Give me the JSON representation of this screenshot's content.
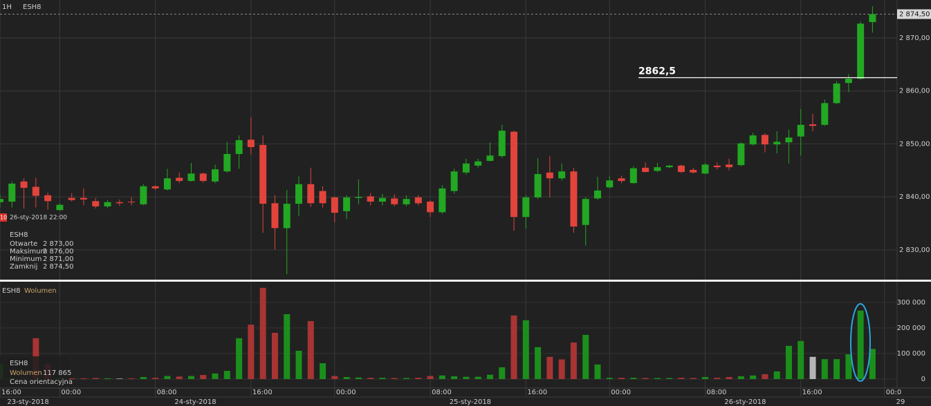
{
  "header": {
    "interval": "1H",
    "symbol": "ESH8"
  },
  "chart_data": [
    {
      "type": "candlestick",
      "categories": [
        "16:00",
        null,
        null,
        null,
        null,
        "00:00",
        null,
        null,
        null,
        null,
        null,
        null,
        null,
        "08:00",
        null,
        null,
        null,
        null,
        null,
        null,
        null,
        "16:00",
        null,
        null,
        null,
        null,
        null,
        null,
        "00:00",
        null,
        null,
        null,
        null,
        null,
        null,
        null,
        "08:00",
        null,
        null,
        null,
        null,
        null,
        null,
        null,
        "16:00",
        null,
        null,
        null,
        null,
        null,
        null,
        "00:00",
        null,
        null,
        null,
        null,
        null,
        null,
        null,
        "08:00",
        null,
        null,
        null,
        null,
        null,
        null,
        null,
        "16:00",
        null,
        null,
        null,
        null,
        null,
        null,
        "00:0"
      ],
      "date_labels": [
        null,
        null,
        "23-sty-2018",
        null,
        null,
        null,
        null,
        null,
        null,
        null,
        null,
        null,
        null,
        null,
        null,
        null,
        "24-sty-2018",
        null,
        null,
        null,
        null,
        null,
        null,
        null,
        null,
        null,
        null,
        null,
        null,
        null,
        null,
        null,
        null,
        null,
        null,
        null,
        null,
        null,
        null,
        "25-sty-2018",
        null,
        null,
        null,
        null,
        null,
        null,
        null,
        null,
        null,
        null,
        null,
        null,
        null,
        null,
        null,
        null,
        null,
        null,
        null,
        null,
        null,
        null,
        "26-sty-2018",
        null,
        null,
        null,
        null,
        null,
        null,
        null,
        null,
        null,
        null,
        null,
        null,
        "29"
      ],
      "open": [
        2839.0,
        2839.1,
        2842.9,
        2841.9,
        2840.3,
        2837.5,
        2839.8,
        2839.8,
        2839.2,
        2838.2,
        2839.0,
        2839.1,
        2838.6,
        2842.0,
        2841.4,
        2843.6,
        2843.0,
        2844.4,
        2842.9,
        2844.8,
        2848.1,
        2850.8,
        2849.8,
        2838.8,
        2834.1,
        2838.7,
        2842.4,
        2841.1,
        2839.9,
        2837.3,
        2839.8,
        2840.1,
        2839.1,
        2839.7,
        2838.6,
        2839.9,
        2839.1,
        2837.1,
        2841.1,
        2844.6,
        2845.9,
        2846.8,
        2847.7,
        2852.3,
        2836.2,
        2839.9,
        2844.6,
        2843.5,
        2844.8,
        2834.7,
        2839.7,
        2841.8,
        2843.5,
        2842.6,
        2845.5,
        2844.9,
        2845.6,
        2845.9,
        2845.1,
        2844.4,
        2845.9,
        2846.1,
        2846.0,
        2849.9,
        2851.7,
        2849.9,
        2850.3,
        2851.4,
        2853.7,
        2853.6,
        2857.7,
        2861.5,
        2862.3,
        2873.0,
        null
      ],
      "high": [
        2840.5,
        2842.9,
        2843.5,
        2843.6,
        2840.8,
        2838.8,
        2840.7,
        2841.6,
        2839.8,
        2839.4,
        2839.5,
        2840.0,
        2842.4,
        2842.2,
        2845.3,
        2844.6,
        2846.4,
        2844.6,
        2846.1,
        2850.4,
        2851.6,
        2855.0,
        2851.6,
        2840.3,
        2841.3,
        2843.9,
        2845.5,
        2842.0,
        2840.0,
        2840.3,
        2843.3,
        2840.7,
        2840.6,
        2840.5,
        2840.3,
        2840.3,
        2839.4,
        2842.2,
        2845.3,
        2847.2,
        2847.2,
        2850.3,
        2853.6,
        2852.5,
        2840.3,
        2847.3,
        2847.7,
        2846.3,
        2845.5,
        2839.9,
        2843.8,
        2843.9,
        2844.0,
        2845.8,
        2846.5,
        2846.4,
        2846.0,
        2846.1,
        2845.5,
        2846.4,
        2846.5,
        2847.2,
        2850.3,
        2852.1,
        2852.0,
        2852.4,
        2852.7,
        2856.6,
        2855.7,
        2858.4,
        2861.9,
        2863.2,
        2873.1,
        2876.0,
        null
      ],
      "low": [
        2838.0,
        2838.0,
        2837.8,
        2838.0,
        2837.6,
        2837.4,
        2839.1,
        2838.4,
        2837.8,
        2837.9,
        2838.3,
        2838.4,
        2838.4,
        2841.3,
        2841.2,
        2842.6,
        2842.9,
        2842.7,
        2842.6,
        2844.6,
        2845.3,
        2848.0,
        2833.2,
        2830.0,
        2825.4,
        2836.4,
        2838.1,
        2838.0,
        2835.2,
        2835.8,
        2838.6,
        2838.4,
        2838.4,
        2838.2,
        2838.2,
        2838.4,
        2836.2,
        2836.8,
        2840.6,
        2844.2,
        2845.5,
        2846.7,
        2847.4,
        2833.6,
        2834.0,
        2839.6,
        2839.9,
        2843.1,
        2833.2,
        2830.8,
        2839.5,
        2841.6,
        2842.6,
        2842.5,
        2844.6,
        2844.7,
        2845.4,
        2844.5,
        2844.4,
        2844.3,
        2845.2,
        2845.0,
        2845.8,
        2849.7,
        2848.4,
        2848.2,
        2846.3,
        2847.8,
        2852.4,
        2853.4,
        2857.5,
        2859.8,
        2862.1,
        2871.0,
        null
      ],
      "close": [
        2839.6,
        2842.5,
        2841.7,
        2840.2,
        2839.2,
        2838.5,
        2839.4,
        2839.5,
        2838.2,
        2839.0,
        2838.8,
        2839.0,
        2842.0,
        2841.6,
        2843.5,
        2843.0,
        2844.4,
        2843.0,
        2845.2,
        2848.1,
        2850.7,
        2849.4,
        2838.7,
        2834.1,
        2838.7,
        2842.4,
        2838.8,
        2838.8,
        2837.0,
        2839.9,
        2840.0,
        2839.1,
        2839.8,
        2838.6,
        2839.6,
        2838.8,
        2837.1,
        2841.6,
        2844.8,
        2846.3,
        2846.7,
        2847.8,
        2852.5,
        2836.2,
        2839.9,
        2844.3,
        2843.5,
        2844.8,
        2834.4,
        2839.6,
        2841.2,
        2843.1,
        2843.0,
        2845.4,
        2844.7,
        2845.6,
        2845.9,
        2844.7,
        2844.6,
        2846.1,
        2845.6,
        2845.6,
        2850.1,
        2851.6,
        2849.9,
        2850.4,
        2851.2,
        2853.6,
        2853.4,
        2857.7,
        2861.4,
        2862.3,
        2872.7,
        2874.5,
        null
      ],
      "up_color": "#22a822",
      "down_color": "#e2443c",
      "ylim": [
        2824.37,
        2877.17
      ],
      "yticks": [
        {
          "value": 2870,
          "label": "2 870,00"
        },
        {
          "value": 2860,
          "label": "2 860,00"
        },
        {
          "value": 2850,
          "label": "2 850,00"
        },
        {
          "value": 2840,
          "label": "2 840,00"
        },
        {
          "value": 2830,
          "label": "2 830,00"
        }
      ],
      "grid": true,
      "last_price_label": "2 874,50",
      "annotation": {
        "text": "2862,5",
        "value": 2862.5
      },
      "crosshair": {
        "tag": "10",
        "date": "26-sty-2018 22:00"
      },
      "legend": {
        "symbol": "ESH8",
        "rows": [
          {
            "label": "Otwarte",
            "value": "2 873,00"
          },
          {
            "label": "Maksimum",
            "value": "2 876,00"
          },
          {
            "label": "Minimum",
            "value": "2 871,00"
          },
          {
            "label": "Zamknij",
            "value": "2 874,50"
          }
        ]
      }
    },
    {
      "type": "bar",
      "symbol": "ESH8",
      "title": "Wolumen",
      "values": [
        60000,
        5000,
        3000,
        160000,
        60000,
        5000,
        3000,
        3000,
        4000,
        3000,
        2000,
        3000,
        8000,
        5000,
        12000,
        10000,
        12000,
        16000,
        22000,
        32000,
        160000,
        213000,
        357000,
        181000,
        254000,
        111000,
        227000,
        62000,
        12000,
        8000,
        6000,
        5000,
        5000,
        4000,
        4000,
        5000,
        12000,
        14000,
        11000,
        9000,
        9000,
        17000,
        46000,
        249000,
        230000,
        125000,
        87000,
        77000,
        143000,
        173000,
        57000,
        5000,
        5000,
        5000,
        4000,
        4000,
        4000,
        5000,
        4000,
        8000,
        5000,
        8000,
        11000,
        14000,
        19000,
        30000,
        130000,
        149000,
        87000,
        78000,
        78000,
        97000,
        268000,
        117865,
        null
      ],
      "colors": [
        "#1b8f1b",
        "#1b8f1b",
        "#1b8f1b",
        "#a83434",
        "#a83434",
        "#1b8f1b",
        "#a83434",
        "#a83434",
        "#a83434",
        "#1b8f1b",
        "#b5b5b5",
        "#a83434",
        "#1b8f1b",
        "#a83434",
        "#1b8f1b",
        "#a83434",
        "#1b8f1b",
        "#a83434",
        "#1b8f1b",
        "#1b8f1b",
        "#1b8f1b",
        "#a83434",
        "#a83434",
        "#a83434",
        "#1b8f1b",
        "#1b8f1b",
        "#a83434",
        "#1b8f1b",
        "#a83434",
        "#1b8f1b",
        "#1b8f1b",
        "#a83434",
        "#1b8f1b",
        "#a83434",
        "#1b8f1b",
        "#a83434",
        "#a83434",
        "#1b8f1b",
        "#1b8f1b",
        "#1b8f1b",
        "#1b8f1b",
        "#1b8f1b",
        "#1b8f1b",
        "#a83434",
        "#1b8f1b",
        "#1b8f1b",
        "#a83434",
        "#a83434",
        "#a83434",
        "#1b8f1b",
        "#1b8f1b",
        "#1b8f1b",
        "#a83434",
        "#1b8f1b",
        "#a83434",
        "#1b8f1b",
        "#1b8f1b",
        "#a83434",
        "#a83434",
        "#1b8f1b",
        "#a83434",
        "#a83434",
        "#1b8f1b",
        "#1b8f1b",
        "#a83434",
        "#1b8f1b",
        "#1b8f1b",
        "#1b8f1b",
        "#b5b5b5",
        "#1b8f1b",
        "#1b8f1b",
        "#1b8f1b",
        "#1b8f1b",
        "#1b8f1b",
        null
      ],
      "ylim": [
        0,
        381000
      ],
      "yticks": [
        {
          "value": 300000,
          "label": "300 000"
        },
        {
          "value": 200000,
          "label": "200 000"
        },
        {
          "value": 100000,
          "label": "100 000"
        },
        0
      ],
      "legend": {
        "symbol": "ESH8",
        "label": "Wolumen",
        "value": "117 865",
        "note": "Cena orientacyjna"
      }
    }
  ]
}
